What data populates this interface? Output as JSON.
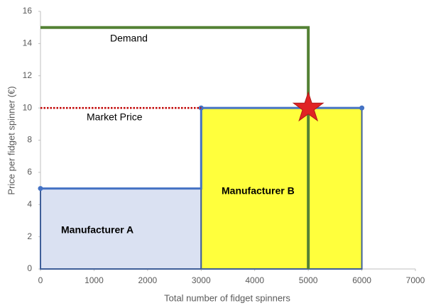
{
  "chart_data": {
    "type": "supply-demand",
    "x_label": "Total number of fidget spinners",
    "y_label": "Price per fidget spinner (€)",
    "xlim": [
      0,
      7000
    ],
    "xticks": [
      0,
      1000,
      2000,
      3000,
      4000,
      5000,
      6000,
      7000
    ],
    "ylim": [
      0,
      16
    ],
    "yticks": [
      0,
      2,
      4,
      6,
      8,
      10,
      12,
      14,
      16
    ],
    "blocks": [
      {
        "name": "Manufacturer A",
        "x": [
          0,
          3000
        ],
        "value": 5,
        "color": "#dae1f2"
      },
      {
        "name": "Manufacturer B",
        "x": [
          3000,
          6000
        ],
        "value": 10,
        "color": "#ffff3c"
      }
    ],
    "supply_color": "#4472c4",
    "demand": {
      "name": "Demand",
      "x": [
        0,
        5000,
        5000
      ],
      "values": [
        15,
        15,
        0
      ],
      "color": "#548235"
    },
    "market_price": {
      "name": "Market Price",
      "x": [
        0,
        3000
      ],
      "value": 10,
      "color": "#c00000"
    },
    "equilibrium": {
      "x": 5000,
      "value": 10,
      "color": "#e02424"
    }
  }
}
